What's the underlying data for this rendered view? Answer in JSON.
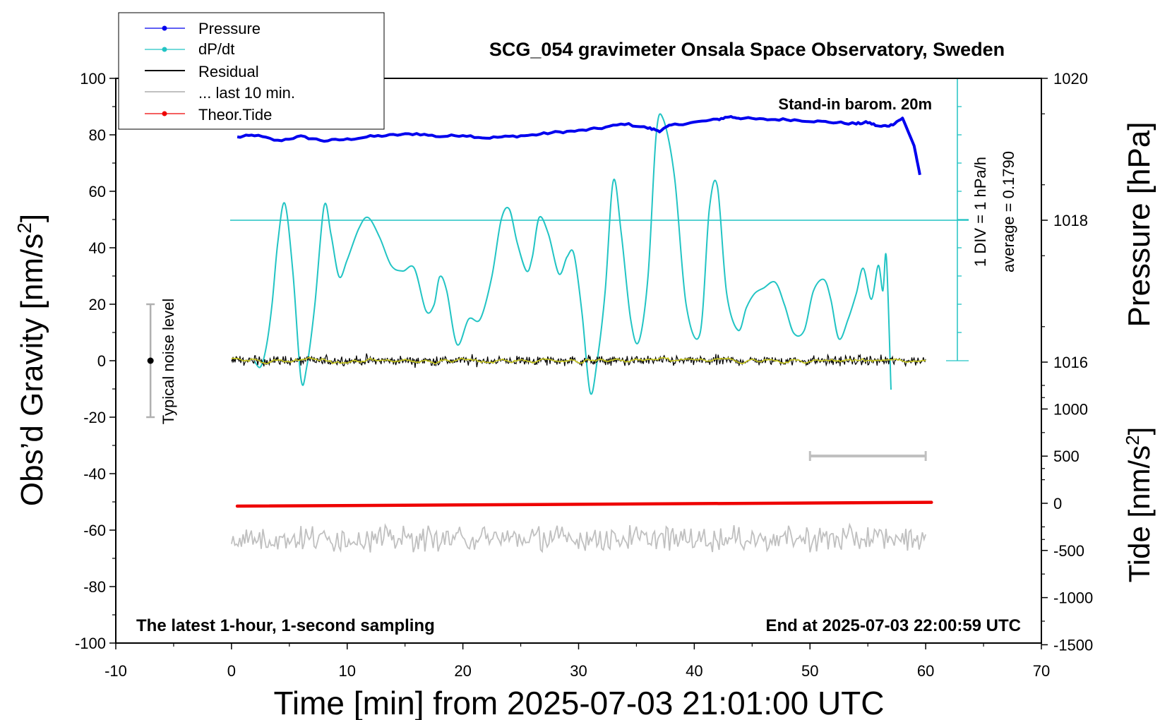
{
  "chart_data": {
    "type": "line",
    "title": "SCG_054 gravimeter Onsala Space Observatory, Sweden",
    "xlabel": "Time [min] from 2025-07-03 21:01:00 UTC",
    "ylabel_left": "Obs’d Gravity [nm/s2]",
    "ylabel_left_main": "Obs’d Gravity [nm/s",
    "ylabel_left_sup": "2",
    "ylabel_left_end": "]",
    "ylabel_pressure": "Pressure [hPa]",
    "ylabel_tide_main": "Tide [nm/s",
    "ylabel_tide_sup": "2",
    "ylabel_tide_end": "]",
    "xlim": [
      -10,
      70
    ],
    "ylim": [
      -100,
      100
    ],
    "x_ticks": [
      "-10",
      "0",
      "10",
      "20",
      "30",
      "40",
      "50",
      "60",
      "70"
    ],
    "y_ticks": [
      "-100",
      "-80",
      "-60",
      "-40",
      "-20",
      "0",
      "20",
      "40",
      "60",
      "80",
      "100"
    ],
    "pressure_ticks": [
      "1016",
      "1018",
      "1020"
    ],
    "tide_ticks": [
      "-1500",
      "-1000",
      "-500",
      "0",
      "500",
      "1000"
    ],
    "annotations": {
      "barometer": "Stand-in barom. 20m",
      "div": "1 DIV = 1 hPa/h",
      "average": "average = 0.1790",
      "noise": "Typical noise level",
      "bottom_left": "The latest 1-hour, 1-second sampling",
      "bottom_right": "End at 2025-07-03 22:00:59 UTC"
    },
    "legend": {
      "position": "top-left",
      "entries": [
        "Pressure",
        "dP/dt",
        "Residual",
        "... last 10 min.",
        "Theor.Tide"
      ]
    },
    "colors": {
      "pressure": "#0000ee",
      "dpdt": "#22c4c4",
      "residual": "#000000",
      "smoothed": "#c8c81e",
      "last10": "#c0c0c0",
      "tide": "#ee0000"
    },
    "series": [
      {
        "name": "Pressure",
        "axis": "pressure",
        "x": [
          0.5,
          2,
          4,
          6,
          8,
          10,
          12,
          14,
          16,
          18,
          20,
          22,
          24,
          26,
          28,
          30,
          32,
          34,
          36,
          37,
          38,
          40,
          42,
          43,
          44,
          46,
          48,
          50,
          52,
          54,
          55,
          56,
          57,
          58,
          59,
          59.5
        ],
        "values": [
          1019.17,
          1019.2,
          1019.12,
          1019.18,
          1019.12,
          1019.14,
          1019.18,
          1019.2,
          1019.22,
          1019.18,
          1019.2,
          1019.16,
          1019.18,
          1019.2,
          1019.24,
          1019.26,
          1019.3,
          1019.36,
          1019.3,
          1019.26,
          1019.34,
          1019.38,
          1019.42,
          1019.46,
          1019.44,
          1019.42,
          1019.42,
          1019.4,
          1019.38,
          1019.36,
          1019.38,
          1019.32,
          1019.34,
          1019.44,
          1019.05,
          1018.64
        ]
      },
      {
        "name": "dP/dt",
        "axis": "dpdt",
        "x": [
          2,
          2.5,
          3,
          3.5,
          4,
          4.6,
          5.3,
          6,
          6.5,
          7.2,
          8,
          8.6,
          9.3,
          10,
          11,
          11.8,
          12.8,
          13.8,
          14.8,
          15.8,
          16.8,
          17.5,
          18,
          18.6,
          19.5,
          20.5,
          21.5,
          22.5,
          23.3,
          24,
          24.7,
          25.5,
          26,
          26.6,
          27.4,
          28.3,
          29,
          29.6,
          30.3,
          31,
          31.6,
          32.3,
          33,
          33.7,
          34.5,
          35.2,
          36,
          36.7,
          37.3,
          38.3,
          39.3,
          40.5,
          41.3,
          42,
          42.8,
          43.8,
          44.5,
          45.2,
          46,
          47,
          47.8,
          48.6,
          49.5,
          50.3,
          51.2,
          51.8,
          52.5,
          53.3,
          54,
          54.6,
          55.3,
          55.9,
          56.3,
          56.6,
          57
        ],
        "values": [
          -5.0,
          -5.2,
          -4.5,
          -3.0,
          -0.8,
          0.6,
          -1.8,
          -5.6,
          -5.2,
          -3.0,
          0.5,
          -0.5,
          -2.0,
          -1.4,
          -0.3,
          0.1,
          -0.6,
          -1.6,
          -1.8,
          -1.7,
          -3.2,
          -3.0,
          -2.0,
          -2.5,
          -4.4,
          -3.5,
          -3.5,
          -2.0,
          0.0,
          0.4,
          -0.8,
          -1.8,
          -1.3,
          0.1,
          -0.5,
          -1.9,
          -1.3,
          -1.2,
          -3.3,
          -6.1,
          -5.0,
          -2.5,
          1.4,
          -0.5,
          -3.5,
          -4.3,
          -2.0,
          3.0,
          3.6,
          1.5,
          -3.0,
          -4.0,
          0.4,
          1.2,
          -2.6,
          -3.9,
          -3.1,
          -2.6,
          -2.4,
          -2.2,
          -3.0,
          -4.0,
          -3.9,
          -2.5,
          -2.1,
          -2.8,
          -4.2,
          -3.5,
          -2.6,
          -1.7,
          -2.8,
          -1.6,
          -2.5,
          -1.3,
          -6.0
        ]
      },
      {
        "name": "Residual",
        "axis": "gravity",
        "x_range": [
          0,
          60
        ],
        "mean": 0,
        "amplitude": 3
      },
      {
        "name": "Theor.Tide",
        "axis": "tide",
        "x": [
          0.5,
          60.5
        ],
        "values": [
          -30,
          10
        ]
      }
    ],
    "reference_lines": {
      "dpdt_zero": 0
    },
    "last10_bar": {
      "x": [
        50,
        60
      ]
    },
    "noise_bar": {
      "x": -7,
      "range": [
        -20,
        20
      ]
    }
  }
}
